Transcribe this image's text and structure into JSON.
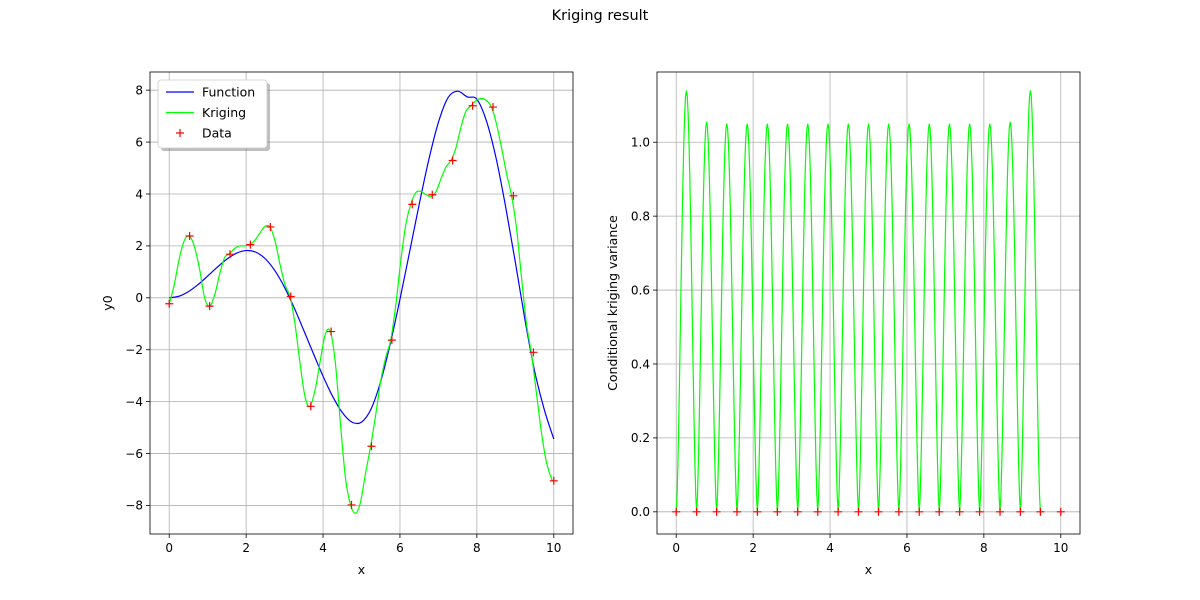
{
  "figure": {
    "title": "Kriging result"
  },
  "chart_data": [
    {
      "type": "line",
      "xlabel": "x",
      "ylabel": "y0",
      "xlim": [
        -0.5,
        10.5
      ],
      "ylim": [
        -9.1,
        8.7
      ],
      "xticks": [
        0,
        2,
        4,
        6,
        8,
        10
      ],
      "yticks": [
        -8,
        -6,
        -4,
        -2,
        0,
        2,
        4,
        6,
        8
      ],
      "xtick_labels": [
        "0",
        "2",
        "4",
        "6",
        "8",
        "10"
      ],
      "ytick_labels": [
        "−8",
        "−6",
        "−4",
        "−2",
        "0",
        "2",
        "4",
        "6",
        "8"
      ],
      "grid": true,
      "legend": {
        "position": "upper-left",
        "entries": [
          "Function",
          "Kriging",
          "Data"
        ]
      },
      "series": [
        {
          "name": "Function",
          "color": "#0000ff",
          "marker": "line",
          "x": [
            0,
            0.25,
            0.5,
            0.75,
            1,
            1.25,
            1.5,
            1.75,
            2,
            2.25,
            2.5,
            2.75,
            3,
            3.25,
            3.5,
            3.75,
            4,
            4.25,
            4.5,
            4.75,
            5,
            5.25,
            5.5,
            5.75,
            6,
            6.25,
            6.5,
            6.75,
            7,
            7.25,
            7.5,
            7.75,
            8,
            8.25,
            8.5,
            8.75,
            9,
            9.25,
            9.5,
            9.75,
            10
          ],
          "y": [
            0,
            0.06,
            0.24,
            0.51,
            0.84,
            1.18,
            1.49,
            1.72,
            1.82,
            1.76,
            1.5,
            1.04,
            0.4,
            -0.39,
            -1.26,
            -2.15,
            -3.02,
            -3.8,
            -4.42,
            -4.79,
            -4.79,
            -4.28,
            -3.22,
            -1.76,
            -0.06,
            1.76,
            3.6,
            5.32,
            6.76,
            7.71,
            7.96,
            7.74,
            7.65,
            6.81,
            5.38,
            3.49,
            1.38,
            -0.84,
            -2.81,
            -4.29,
            -5.44
          ]
        },
        {
          "name": "Kriging",
          "color": "#00ff00",
          "marker": "line",
          "x": [
            0,
            0.13,
            0.26,
            0.39,
            0.52,
            0.65,
            0.79,
            0.92,
            1.05,
            1.18,
            1.31,
            1.44,
            1.57,
            1.7,
            1.83,
            1.96,
            2.09,
            2.22,
            2.36,
            2.49,
            2.62,
            2.75,
            2.88,
            3.01,
            3.14,
            3.27,
            3.4,
            3.53,
            3.66,
            3.8,
            3.93,
            4.06,
            4.19,
            4.32,
            4.45,
            4.58,
            4.71,
            4.84,
            4.97,
            5.1,
            5.24,
            5.37,
            5.5,
            5.63,
            5.76,
            5.89,
            6.02,
            6.15,
            6.28,
            6.41,
            6.54,
            6.68,
            6.81,
            6.94,
            7.07,
            7.2,
            7.33,
            7.46,
            7.59,
            7.72,
            7.85,
            7.98,
            8.12,
            8.25,
            8.38,
            8.51,
            8.64,
            8.77,
            8.9,
            9.03,
            9.16,
            9.29,
            9.42,
            9.56,
            9.69,
            9.82,
            9.95,
            10
          ],
          "y": [
            -0.23,
            0.5,
            1.5,
            2.2,
            2.38,
            2.0,
            1.1,
            0.0,
            -0.32,
            0.1,
            0.9,
            1.55,
            1.7,
            1.9,
            2.0,
            2.0,
            2.05,
            2.2,
            2.5,
            2.75,
            2.73,
            2.2,
            1.3,
            0.5,
            0.05,
            -1.0,
            -2.5,
            -3.8,
            -4.18,
            -3.5,
            -2.4,
            -1.4,
            -1.3,
            -2.5,
            -4.8,
            -6.9,
            -7.95,
            -8.3,
            -7.9,
            -6.8,
            -5.7,
            -4.5,
            -3.2,
            -2.3,
            -1.63,
            -0.3,
            1.4,
            2.8,
            3.6,
            4.05,
            4.1,
            3.97,
            3.9,
            4.1,
            4.6,
            5.05,
            5.3,
            5.8,
            6.6,
            7.2,
            7.4,
            7.6,
            7.68,
            7.6,
            7.35,
            6.7,
            5.8,
            4.8,
            3.95,
            2.7,
            0.8,
            -1.0,
            -2.15,
            -3.8,
            -5.3,
            -6.4,
            -7.0,
            -7.05
          ]
        },
        {
          "name": "Data",
          "color": "#ff0000",
          "marker": "+",
          "x": [
            0,
            0.53,
            1.05,
            1.58,
            2.11,
            2.63,
            3.16,
            3.68,
            4.21,
            4.74,
            5.26,
            5.79,
            6.32,
            6.84,
            7.37,
            7.89,
            8.42,
            8.95,
            9.47,
            10
          ],
          "y": [
            -0.23,
            2.38,
            -0.32,
            1.68,
            2.05,
            2.73,
            0.05,
            -4.18,
            -1.3,
            -7.98,
            -5.72,
            -1.63,
            3.6,
            3.97,
            5.29,
            7.4,
            7.35,
            3.93,
            -2.1,
            -7.05
          ]
        }
      ]
    },
    {
      "type": "line",
      "xlabel": "x",
      "ylabel": "Conditional kriging variance",
      "xlim": [
        -0.5,
        10.5
      ],
      "ylim": [
        -0.06,
        1.19
      ],
      "xticks": [
        0,
        2,
        4,
        6,
        8,
        10
      ],
      "yticks": [
        0.0,
        0.2,
        0.4,
        0.6,
        0.8,
        1.0
      ],
      "xtick_labels": [
        "0",
        "2",
        "4",
        "6",
        "8",
        "10"
      ],
      "ytick_labels": [
        "0.0",
        "0.2",
        "0.4",
        "0.6",
        "0.8",
        "1.0"
      ],
      "grid": true,
      "series": [
        {
          "color": "#00ff00",
          "marker": "line",
          "x_nodes": [
            0,
            0.53,
            1.05,
            1.58,
            2.11,
            2.63,
            3.16,
            3.68,
            4.21,
            4.74,
            5.26,
            5.79,
            6.32,
            6.84,
            7.37,
            7.89,
            8.42,
            8.95,
            9.47,
            10
          ],
          "peaks": [
            1.14,
            1.055,
            1.05,
            1.05,
            1.05,
            1.05,
            1.05,
            1.05,
            1.05,
            1.05,
            1.05,
            1.05,
            1.05,
            1.05,
            1.05,
            1.05,
            1.055,
            1.14
          ]
        },
        {
          "color": "#ff0000",
          "marker": "+",
          "x": [
            0,
            0.53,
            1.05,
            1.58,
            2.11,
            2.63,
            3.16,
            3.68,
            4.21,
            4.74,
            5.26,
            5.79,
            6.32,
            6.84,
            7.37,
            7.89,
            8.42,
            8.95,
            9.47,
            10
          ],
          "y": [
            0,
            0,
            0,
            0,
            0,
            0,
            0,
            0,
            0,
            0,
            0,
            0,
            0,
            0,
            0,
            0,
            0,
            0,
            0,
            0
          ]
        }
      ]
    }
  ]
}
